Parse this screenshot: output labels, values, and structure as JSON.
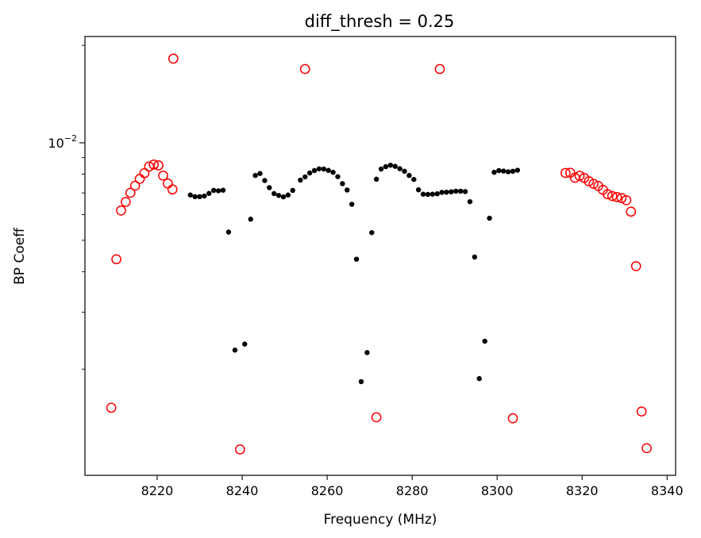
{
  "chart_data": {
    "type": "scatter",
    "title": "diff_thresh = 0.25",
    "xlabel": "Frequency (MHz)",
    "ylabel": "BP Coeff",
    "xlim": [
      8203,
      8342
    ],
    "ylim": [
      0.00094,
      0.0213
    ],
    "yscale": "log",
    "grid": false,
    "legend": "none",
    "xticks": [
      8220,
      8240,
      8260,
      8280,
      8300,
      8320,
      8340
    ],
    "xtick_labels": [
      "8220",
      "8240",
      "8260",
      "8280",
      "8300",
      "8320",
      "8340"
    ],
    "yticks_major": [
      0.01
    ],
    "ytick_major_labels": [
      {
        "base": "10",
        "exp": "−2"
      }
    ],
    "yticks_minor": [
      0.002,
      0.003,
      0.004,
      0.005,
      0.006,
      0.007,
      0.008,
      0.009,
      0.02
    ],
    "series": [
      {
        "marker": "filled-circle",
        "color": "#000000",
        "points": [
          [
            8227.8,
            0.0069
          ],
          [
            8228.9,
            0.00682
          ],
          [
            8230.0,
            0.00682
          ],
          [
            8231.1,
            0.00685
          ],
          [
            8232.2,
            0.00698
          ],
          [
            8233.3,
            0.00713
          ],
          [
            8234.4,
            0.00711
          ],
          [
            8235.5,
            0.00714
          ],
          [
            8236.8,
            0.0053
          ],
          [
            8238.3,
            0.00229
          ],
          [
            8240.6,
            0.00239
          ],
          [
            8242.0,
            0.00581
          ],
          [
            8243.1,
            0.00793
          ],
          [
            8244.2,
            0.00804
          ],
          [
            8245.3,
            0.00765
          ],
          [
            8246.4,
            0.00727
          ],
          [
            8247.5,
            0.00697
          ],
          [
            8248.6,
            0.00688
          ],
          [
            8249.7,
            0.00681
          ],
          [
            8250.8,
            0.0069
          ],
          [
            8251.9,
            0.00713
          ],
          [
            8253.7,
            0.00767
          ],
          [
            8254.8,
            0.00785
          ],
          [
            8255.9,
            0.00807
          ],
          [
            8257.0,
            0.00821
          ],
          [
            8258.1,
            0.00831
          ],
          [
            8259.2,
            0.0083
          ],
          [
            8260.3,
            0.00822
          ],
          [
            8261.4,
            0.00811
          ],
          [
            8262.5,
            0.00786
          ],
          [
            8263.6,
            0.00748
          ],
          [
            8264.7,
            0.00715
          ],
          [
            8265.8,
            0.00646
          ],
          [
            8266.9,
            0.00437
          ],
          [
            8268.0,
            0.00183
          ],
          [
            8269.4,
            0.00225
          ],
          [
            8270.5,
            0.00528
          ],
          [
            8271.6,
            0.00772
          ],
          [
            8272.7,
            0.0083
          ],
          [
            8273.8,
            0.00844
          ],
          [
            8274.9,
            0.00853
          ],
          [
            8276.0,
            0.00846
          ],
          [
            8277.1,
            0.00832
          ],
          [
            8278.2,
            0.00817
          ],
          [
            8279.3,
            0.00793
          ],
          [
            8280.4,
            0.00771
          ],
          [
            8281.5,
            0.00716
          ],
          [
            8282.6,
            0.00694
          ],
          [
            8283.7,
            0.00693
          ],
          [
            8284.8,
            0.00694
          ],
          [
            8285.9,
            0.00696
          ],
          [
            8287.0,
            0.00703
          ],
          [
            8288.1,
            0.00704
          ],
          [
            8289.2,
            0.00706
          ],
          [
            8290.3,
            0.00709
          ],
          [
            8291.4,
            0.00709
          ],
          [
            8292.5,
            0.00707
          ],
          [
            8293.6,
            0.00658
          ],
          [
            8294.7,
            0.00444
          ],
          [
            8295.8,
            0.00187
          ],
          [
            8297.1,
            0.00244
          ],
          [
            8298.2,
            0.00585
          ],
          [
            8299.3,
            0.00811
          ],
          [
            8300.4,
            0.00821
          ],
          [
            8301.5,
            0.00818
          ],
          [
            8302.6,
            0.00814
          ],
          [
            8303.7,
            0.00817
          ],
          [
            8304.8,
            0.00823
          ]
        ]
      },
      {
        "marker": "open-circle",
        "color": "#ff0000",
        "points": [
          [
            8209.2,
            0.00152
          ],
          [
            8210.4,
            0.00437
          ],
          [
            8211.5,
            0.00618
          ],
          [
            8212.6,
            0.00657
          ],
          [
            8213.7,
            0.00701
          ],
          [
            8214.8,
            0.00737
          ],
          [
            8215.9,
            0.00774
          ],
          [
            8217.0,
            0.00806
          ],
          [
            8218.1,
            0.00845
          ],
          [
            8219.2,
            0.00857
          ],
          [
            8220.3,
            0.00852
          ],
          [
            8221.4,
            0.00792
          ],
          [
            8222.5,
            0.00749
          ],
          [
            8223.6,
            0.00718
          ],
          [
            8223.8,
            0.0182
          ],
          [
            8239.5,
            0.00113
          ],
          [
            8254.8,
            0.0169
          ],
          [
            8271.6,
            0.00142
          ],
          [
            8286.5,
            0.0169
          ],
          [
            8303.7,
            0.00141
          ],
          [
            8316.1,
            0.00807
          ],
          [
            8317.2,
            0.00808
          ],
          [
            8318.3,
            0.0078
          ],
          [
            8319.4,
            0.00791
          ],
          [
            8320.5,
            0.00779
          ],
          [
            8321.6,
            0.00761
          ],
          [
            8322.7,
            0.00747
          ],
          [
            8323.8,
            0.00736
          ],
          [
            8324.9,
            0.00716
          ],
          [
            8326.0,
            0.00694
          ],
          [
            8327.1,
            0.00685
          ],
          [
            8328.2,
            0.0068
          ],
          [
            8329.3,
            0.00675
          ],
          [
            8330.4,
            0.00665
          ],
          [
            8331.5,
            0.00613
          ],
          [
            8332.7,
            0.00416
          ],
          [
            8334.0,
            0.00148
          ],
          [
            8335.2,
            0.00114
          ]
        ]
      }
    ]
  }
}
